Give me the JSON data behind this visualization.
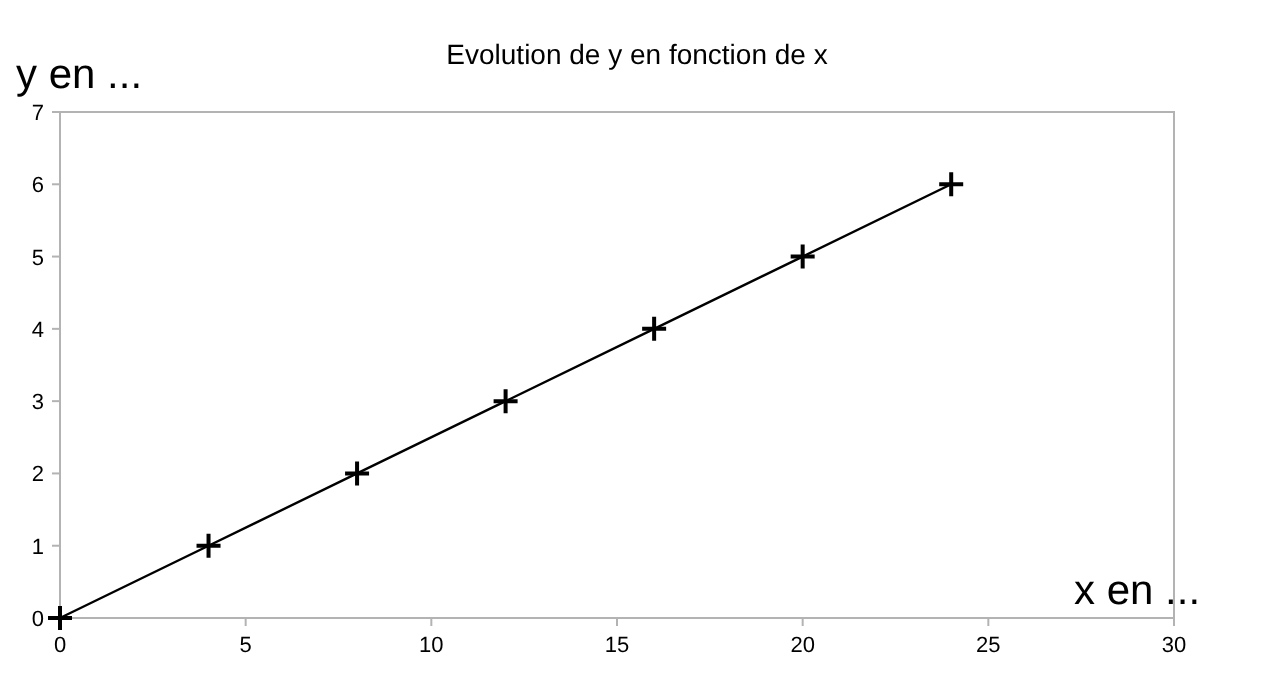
{
  "chart_data": {
    "type": "line",
    "title": "Evolution de y en fonction de x",
    "xlabel": "x en ...",
    "ylabel": "y en ...",
    "x": [
      0,
      4,
      8,
      12,
      16,
      20,
      24
    ],
    "series": [
      {
        "color": "#000000",
        "values": [
          0,
          1,
          2,
          3,
          4,
          5,
          6
        ]
      }
    ],
    "xlim": [
      0,
      30
    ],
    "xticks": [
      0,
      5,
      10,
      15,
      20,
      25,
      30
    ],
    "ylim": [
      0,
      7
    ],
    "yticks": [
      0,
      1,
      2,
      3,
      4,
      5,
      6,
      7
    ],
    "grid": false,
    "marker": "cross",
    "line_style": "solid"
  }
}
